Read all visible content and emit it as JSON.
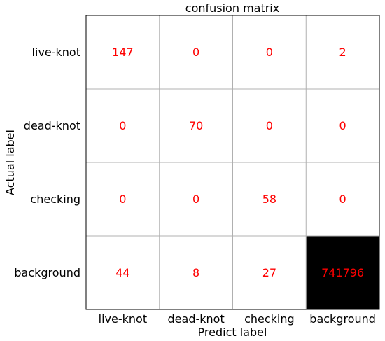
{
  "chart_data": {
    "type": "heatmap",
    "title": "confusion matrix",
    "xlabel": "Predict label",
    "ylabel": "Actual label",
    "x_categories": [
      "live-knot",
      "dead-knot",
      "checking",
      "background"
    ],
    "y_categories": [
      "live-knot",
      "dead-knot",
      "checking",
      "background"
    ],
    "values": [
      [
        147,
        0,
        0,
        2
      ],
      [
        0,
        70,
        0,
        0
      ],
      [
        0,
        0,
        58,
        0
      ],
      [
        44,
        8,
        27,
        741796
      ]
    ],
    "colormap": "greys",
    "grid": true,
    "colors": {
      "cell_text": "#ff0000",
      "low": "#ffffff",
      "high": "#000000",
      "grid": "#b0b0b0",
      "frame": "#000000"
    }
  }
}
